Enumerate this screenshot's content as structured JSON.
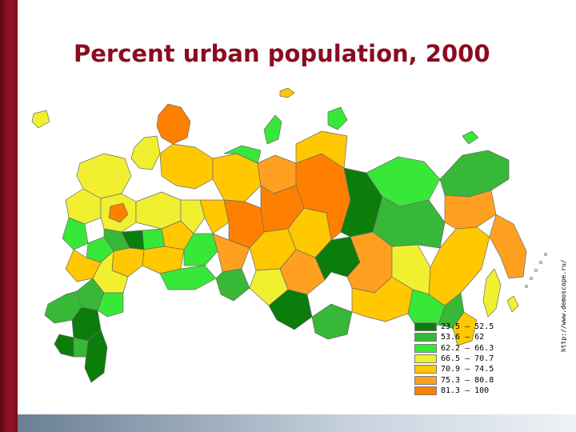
{
  "slide": {
    "title": "Percent urban population, 2000",
    "source_url": "http://www.demoscope.ru/"
  },
  "legend": {
    "items": [
      {
        "label": "23.5 – 52.5",
        "color": "#0a7d0a"
      },
      {
        "label": "53.6 – 62",
        "color": "#37b837"
      },
      {
        "label": "62.2 – 66.3",
        "color": "#38e838"
      },
      {
        "label": "66.5 – 70.7",
        "color": "#f0f030"
      },
      {
        "label": "70.9 – 74.5",
        "color": "#ffc800"
      },
      {
        "label": "75.3 – 80.8",
        "color": "#ffa020"
      },
      {
        "label": "81.3 – 100",
        "color": "#ff8000"
      }
    ]
  },
  "map": {
    "regions": [
      {
        "name": "kola",
        "cls": 6
      },
      {
        "name": "karelia",
        "cls": 3
      },
      {
        "name": "arkhangelsk",
        "cls": 4
      },
      {
        "name": "komi",
        "cls": 4
      },
      {
        "name": "nenets",
        "cls": 2
      },
      {
        "name": "northwest",
        "cls": 3
      },
      {
        "name": "yamal",
        "cls": 5
      },
      {
        "name": "khmao",
        "cls": 6
      },
      {
        "name": "krasnoyarsk",
        "cls": 6
      },
      {
        "name": "taimyr",
        "cls": 4
      },
      {
        "name": "evenkia",
        "cls": 0
      },
      {
        "name": "yakutia",
        "cls": 1
      },
      {
        "name": "sakha-north",
        "cls": 2
      },
      {
        "name": "chukotka",
        "cls": 1
      },
      {
        "name": "magadan",
        "cls": 5
      },
      {
        "name": "kamchatka",
        "cls": 5
      },
      {
        "name": "khabarovsk",
        "cls": 4
      },
      {
        "name": "amur",
        "cls": 2
      },
      {
        "name": "jewish-ao",
        "cls": 1
      },
      {
        "name": "primorye",
        "cls": 4
      },
      {
        "name": "chita",
        "cls": 3
      },
      {
        "name": "buryatia",
        "cls": 4
      },
      {
        "name": "irkutsk",
        "cls": 5
      },
      {
        "name": "ust-orda",
        "cls": 0
      },
      {
        "name": "tuva",
        "cls": 1
      },
      {
        "name": "altai",
        "cls": 0
      },
      {
        "name": "novosibirsk",
        "cls": 5
      },
      {
        "name": "omsk",
        "cls": 3
      },
      {
        "name": "tomsk",
        "cls": 4
      },
      {
        "name": "tyumen",
        "cls": 4
      },
      {
        "name": "kurgan",
        "cls": 1
      },
      {
        "name": "sverdlovsk",
        "cls": 6
      },
      {
        "name": "chelyabinsk",
        "cls": 5
      },
      {
        "name": "bashkortostan",
        "cls": 2
      },
      {
        "name": "perm",
        "cls": 4
      },
      {
        "name": "udmurtia",
        "cls": 3
      },
      {
        "name": "kirov",
        "cls": 3
      },
      {
        "name": "tatarstan",
        "cls": 4
      },
      {
        "name": "orenburg",
        "cls": 2
      },
      {
        "name": "samara",
        "cls": 4
      },
      {
        "name": "saratov",
        "cls": 4
      },
      {
        "name": "volgograd",
        "cls": 3
      },
      {
        "name": "penza",
        "cls": 2
      },
      {
        "name": "moscow-ring",
        "cls": 3
      },
      {
        "name": "moscow",
        "cls": 6
      },
      {
        "name": "smolensk",
        "cls": 3
      },
      {
        "name": "bryansk",
        "cls": 2
      },
      {
        "name": "belgorod",
        "cls": 2
      },
      {
        "name": "voronezh",
        "cls": 1
      },
      {
        "name": "tambov",
        "cls": 0
      },
      {
        "name": "rostov",
        "cls": 4
      },
      {
        "name": "kalmykia",
        "cls": 1
      },
      {
        "name": "astrakhan",
        "cls": 2
      },
      {
        "name": "krasnodar",
        "cls": 1
      },
      {
        "name": "stavropol",
        "cls": 0
      },
      {
        "name": "dagestan",
        "cls": 0
      },
      {
        "name": "chechnya",
        "cls": 1
      },
      {
        "name": "ingushetia",
        "cls": 0
      },
      {
        "name": "kaliningrad",
        "cls": 3
      },
      {
        "name": "novaya-zemlya",
        "cls": 2
      },
      {
        "name": "franz-josef",
        "cls": 4
      },
      {
        "name": "severnaya-zemlya",
        "cls": 2
      },
      {
        "name": "sakhalin",
        "cls": 3
      },
      {
        "name": "kuril",
        "cls": 3
      },
      {
        "name": "wrangel",
        "cls": 2
      }
    ]
  }
}
